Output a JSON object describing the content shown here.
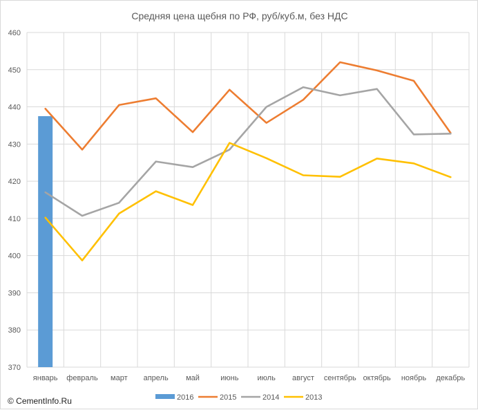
{
  "chart_data": {
    "type": "bar+line",
    "title": "Средняя цена щебня по РФ, руб/куб.м, без НДС",
    "categories": [
      "январь",
      "февраль",
      "март",
      "апрель",
      "май",
      "июнь",
      "июль",
      "август",
      "сентябрь",
      "октябрь",
      "ноябрь",
      "декабрь"
    ],
    "ylim": [
      370,
      460
    ],
    "yticks": [
      370,
      380,
      390,
      400,
      410,
      420,
      430,
      440,
      450,
      460
    ],
    "grid": true,
    "legend_position": "bottom",
    "series": [
      {
        "name": "2016",
        "type": "bar",
        "color": "#5b9bd5",
        "values": [
          437.5,
          null,
          null,
          null,
          null,
          null,
          null,
          null,
          null,
          null,
          null,
          null
        ]
      },
      {
        "name": "2015",
        "type": "line",
        "color": "#ed7d31",
        "values": [
          439.5,
          428.5,
          440.5,
          442.3,
          433.2,
          444.6,
          435.7,
          441.9,
          452.0,
          449.8,
          447.0,
          433.0
        ]
      },
      {
        "name": "2014",
        "type": "line",
        "color": "#a5a5a5",
        "values": [
          417.0,
          410.7,
          414.2,
          425.3,
          423.8,
          428.5,
          440.0,
          445.3,
          443.1,
          444.8,
          432.6,
          432.8
        ]
      },
      {
        "name": "2013",
        "type": "line",
        "color": "#ffc000",
        "values": [
          410.2,
          398.7,
          411.3,
          417.3,
          413.6,
          430.3,
          426.2,
          421.6,
          421.2,
          426.1,
          424.8,
          421.1
        ]
      }
    ]
  },
  "footer": {
    "copyright": "© CementInfo.Ru"
  }
}
